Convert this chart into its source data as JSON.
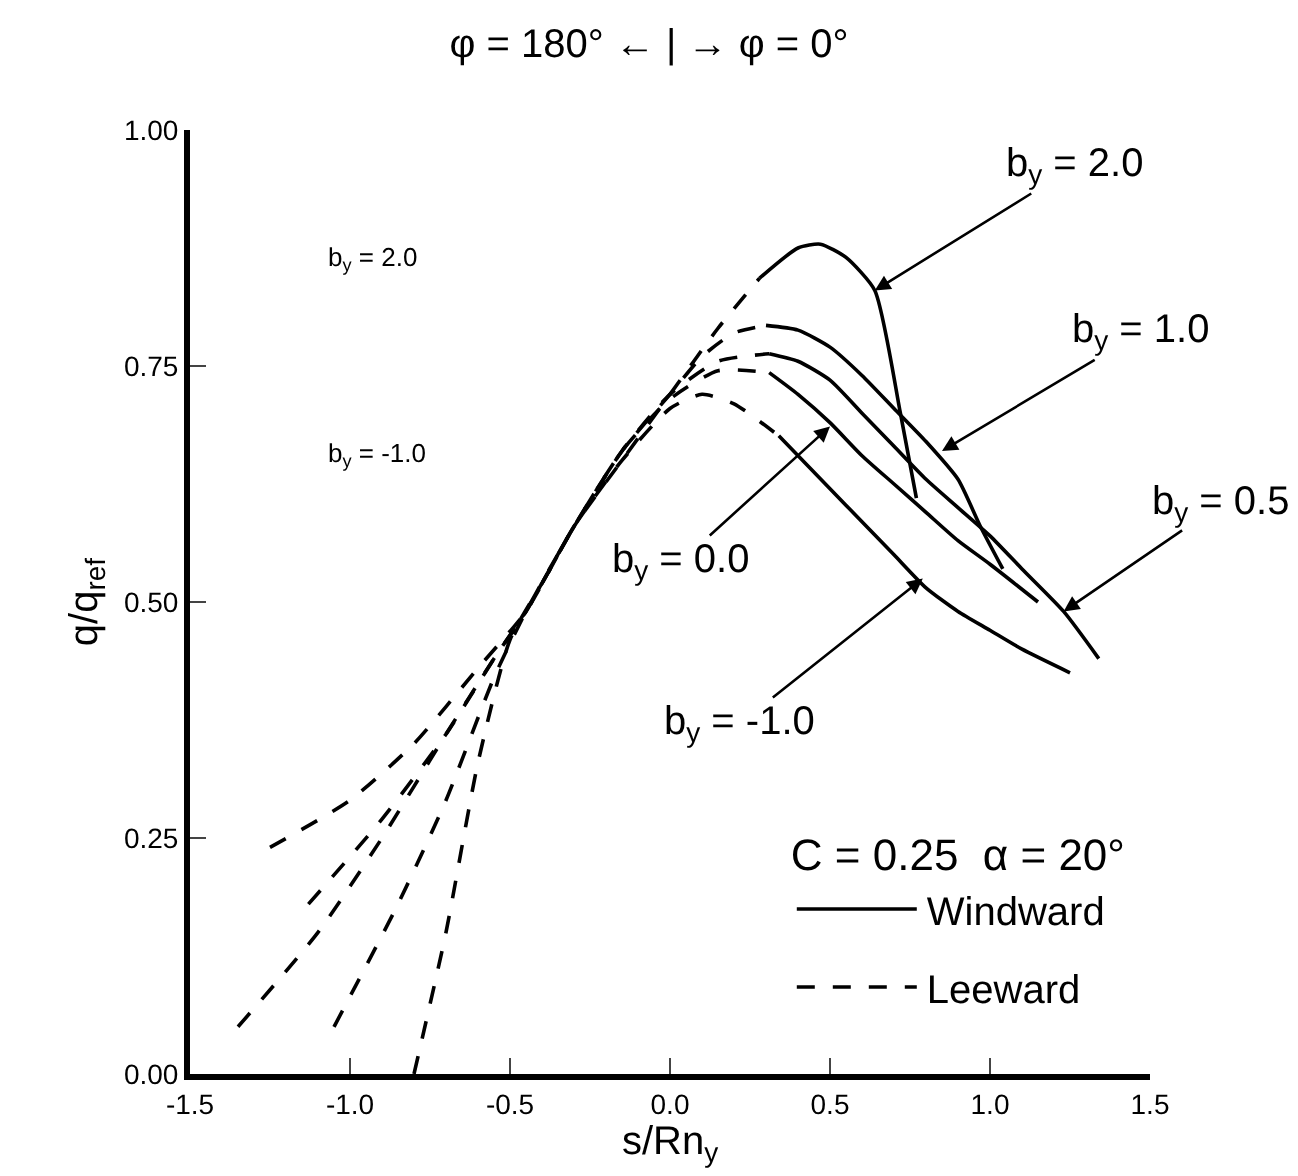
{
  "chart_data": {
    "type": "line",
    "title": "φ = 180° ← | → φ = 0°",
    "xlabel": "s/Rn$_{y}$",
    "ylabel": "q/q$_{ref}$",
    "legend_title": "C = 0.25  α = 20°",
    "xlim": [
      -1.5,
      1.5
    ],
    "ylim": [
      0,
      1
    ],
    "xticks": [
      -1.5,
      {
        "value": -1.0,
        "label": "-1.0"
      },
      -0.5,
      {
        "value": 0.0,
        "label": "0.0"
      },
      0.5,
      {
        "value": 1.0,
        "label": "1.0"
      },
      1.5
    ],
    "yticks": [
      {
        "value": 0,
        "label": "0.00"
      },
      0.25,
      {
        "value": 0.5,
        "label": "0.50"
      },
      0.75,
      {
        "value": 1,
        "label": "1.00"
      }
    ],
    "legend": "bottom right",
    "marker": "none",
    "series": [
      {
        "name": "Windward",
        "color": "#000000",
        "line_style": "solid",
        "x": [
          0.28,
          0.4,
          0.47,
          0.55,
          0.64,
          0.72,
          0.77
        ],
        "values": [
          0.843,
          0.875,
          0.879,
          0.865,
          0.83,
          0.7,
          0.61
        ]
      },
      {
        "name": "Leeward",
        "color": "#000000",
        "line_style": "dashed",
        "x": [
          -1.25,
          -1.0,
          -0.8,
          -0.6,
          -0.45,
          -0.3,
          -0.15,
          0.0,
          0.15,
          0.28
        ],
        "values": [
          0.24,
          0.29,
          0.35,
          0.43,
          0.49,
          0.58,
          0.65,
          0.72,
          0.79,
          0.843
        ]
      },
      {
        "color": "#000000",
        "line_style": "solid",
        "x": [
          0.3,
          0.4,
          0.5,
          0.6,
          0.7,
          0.8,
          0.9,
          0.97,
          1.04
        ],
        "values": [
          0.793,
          0.788,
          0.77,
          0.74,
          0.705,
          0.67,
          0.63,
          0.58,
          0.535
        ]
      },
      {
        "color": "#000000",
        "line_style": "dashed",
        "x": [
          -1.13,
          -0.9,
          -0.7,
          -0.55,
          -0.45,
          -0.3,
          -0.15,
          0.0,
          0.1,
          0.2,
          0.3
        ],
        "values": [
          0.18,
          0.27,
          0.36,
          0.44,
          0.49,
          0.58,
          0.66,
          0.72,
          0.76,
          0.785,
          0.793
        ]
      },
      {
        "color": "#000000",
        "line_style": "solid",
        "x": [
          0.31,
          0.4,
          0.5,
          0.6,
          0.7,
          0.8,
          0.9,
          1.0,
          1.1,
          1.23,
          1.34
        ],
        "values": [
          0.763,
          0.755,
          0.735,
          0.7,
          0.665,
          0.63,
          0.6,
          0.57,
          0.535,
          0.49,
          0.44
        ]
      },
      {
        "color": "#000000",
        "line_style": "dashed",
        "x": [
          -1.35,
          -1.1,
          -0.9,
          -0.7,
          -0.55,
          -0.45,
          -0.3,
          -0.15,
          0.0,
          0.15,
          0.31
        ],
        "values": [
          0.05,
          0.15,
          0.25,
          0.36,
          0.44,
          0.49,
          0.58,
          0.66,
          0.72,
          0.755,
          0.763
        ]
      },
      {
        "color": "#000000",
        "line_style": "solid",
        "x": [
          0.31,
          0.4,
          0.5,
          0.6,
          0.7,
          0.8,
          0.9,
          1.0,
          1.15
        ],
        "values": [
          0.743,
          0.72,
          0.69,
          0.655,
          0.625,
          0.595,
          0.565,
          0.54,
          0.5
        ]
      },
      {
        "color": "#000000",
        "line_style": "dashed",
        "x": [
          -1.05,
          -0.85,
          -0.7,
          -0.55,
          -0.45,
          -0.3,
          -0.15,
          0.0,
          0.15,
          0.31
        ],
        "values": [
          0.05,
          0.18,
          0.29,
          0.42,
          0.49,
          0.58,
          0.66,
          0.715,
          0.745,
          0.743
        ]
      },
      {
        "color": "#000000",
        "line_style": "solid",
        "x": [
          0.34,
          0.5,
          0.6,
          0.7,
          0.8,
          0.9,
          1.0,
          1.1,
          1.25
        ],
        "values": [
          0.676,
          0.62,
          0.585,
          0.55,
          0.515,
          0.49,
          0.47,
          0.45,
          0.425
        ]
      },
      {
        "color": "#000000",
        "line_style": "dashed",
        "x": [
          -0.8,
          -0.7,
          -0.6,
          -0.5,
          -0.4,
          -0.3,
          -0.15,
          0.0,
          0.1,
          0.2,
          0.34
        ],
        "values": [
          0.0,
          0.15,
          0.33,
          0.46,
          0.52,
          0.58,
          0.65,
          0.705,
          0.72,
          0.71,
          0.676
        ]
      }
    ],
    "annotations": [
      {
        "text": "b$_{y}$ = 2.0",
        "x": 0.64,
        "y": 0.83
      },
      {
        "text": "b$_{y}$ = 1.0",
        "x": 0.85,
        "y": 0.66
      },
      {
        "text": "b$_{y}$ = 0.5",
        "x": 1.23,
        "y": 0.49
      },
      {
        "text": "b$_{y}$ = 0.0",
        "x": 0.5,
        "y": 0.686
      },
      {
        "text": "b$_{y}$ = -1.0",
        "x": 0.79,
        "y": 0.525
      },
      "b$_{y}$ = 2.0",
      "b$_{y}$ = -1.0"
    ]
  }
}
